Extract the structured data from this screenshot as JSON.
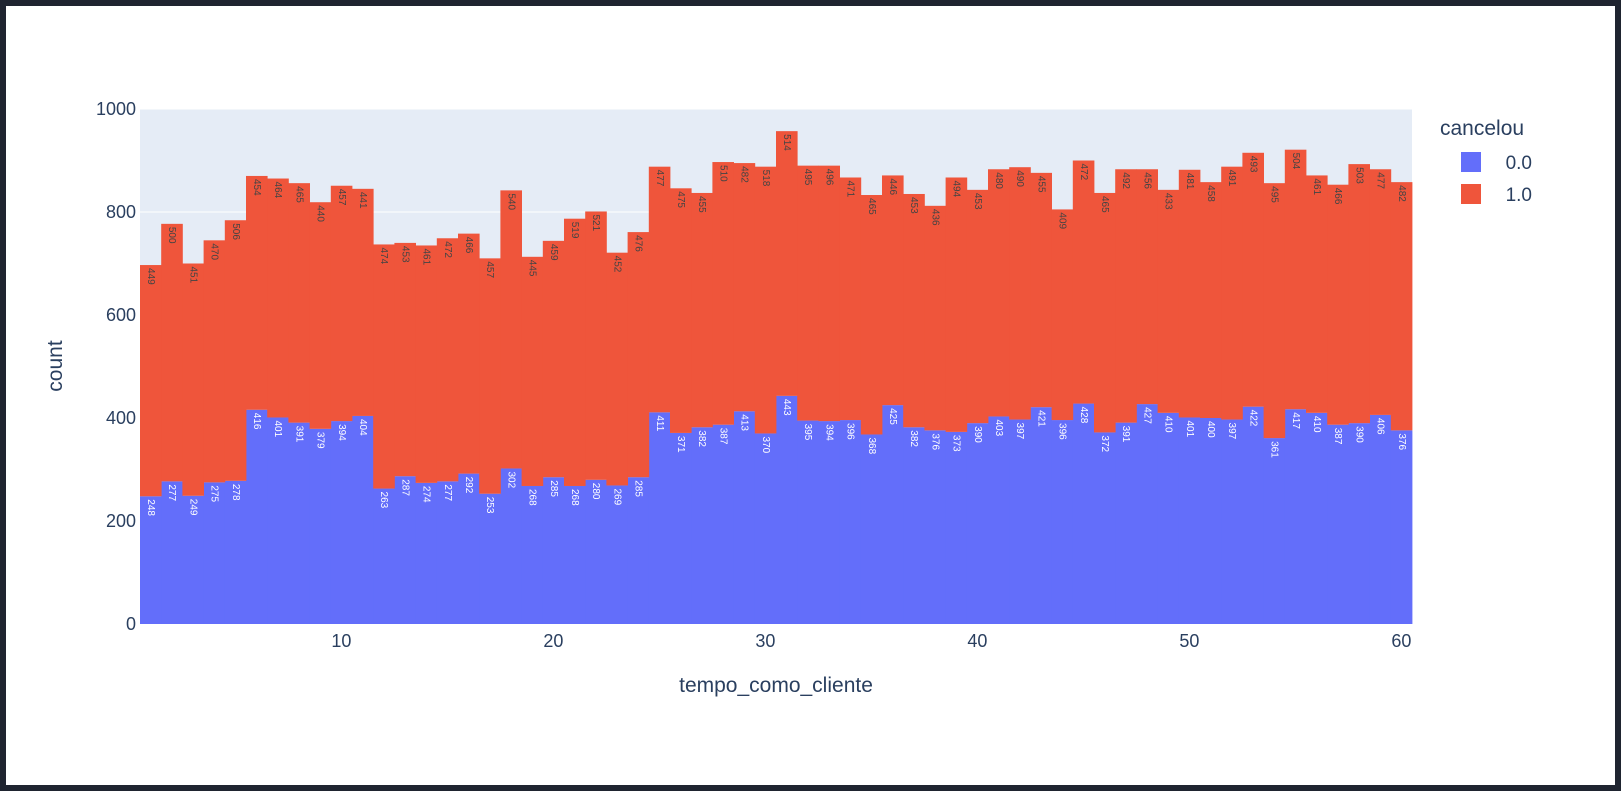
{
  "chart_data": {
    "type": "bar",
    "barmode": "stack",
    "xlabel": "tempo_como_cliente",
    "ylabel": "count",
    "legend_title": "cancelou",
    "legend_position": "top-right",
    "grid": true,
    "xlim": [
      0.5,
      60.5
    ],
    "ylim": [
      0,
      1000
    ],
    "x_ticks": [
      10,
      20,
      30,
      40,
      50,
      60
    ],
    "y_ticks": [
      0,
      200,
      400,
      600,
      800,
      1000
    ],
    "x": [
      1,
      2,
      3,
      4,
      5,
      6,
      7,
      8,
      9,
      10,
      11,
      12,
      13,
      14,
      15,
      16,
      17,
      18,
      19,
      20,
      21,
      22,
      23,
      24,
      25,
      26,
      27,
      28,
      29,
      30,
      31,
      32,
      33,
      34,
      35,
      36,
      37,
      38,
      39,
      40,
      41,
      42,
      43,
      44,
      45,
      46,
      47,
      48,
      49,
      50,
      51,
      52,
      53,
      54,
      55,
      56,
      57,
      58,
      59,
      60
    ],
    "series": [
      {
        "name": "0.0",
        "color": "#636efa",
        "values": [
          248,
          277,
          249,
          275,
          278,
          416,
          401,
          391,
          379,
          394,
          404,
          263,
          287,
          274,
          277,
          292,
          253,
          302,
          268,
          285,
          268,
          280,
          269,
          285,
          411,
          371,
          382,
          387,
          413,
          370,
          443,
          395,
          394,
          396,
          368,
          425,
          382,
          376,
          373,
          390,
          403,
          397,
          421,
          396,
          428,
          372,
          391,
          427,
          410,
          401,
          400,
          397,
          422,
          361,
          417,
          410,
          387,
          390,
          406,
          376
        ]
      },
      {
        "name": "1.0",
        "color": "#ef553b",
        "values": [
          449,
          500,
          451,
          470,
          506,
          454,
          464,
          465,
          440,
          457,
          441,
          474,
          453,
          461,
          472,
          466,
          457,
          540,
          445,
          459,
          519,
          521,
          452,
          476,
          477,
          475,
          455,
          510,
          482,
          518,
          514,
          495,
          496,
          471,
          465,
          446,
          453,
          436,
          494,
          453,
          480,
          490,
          455,
          409,
          472,
          465,
          492,
          456,
          433,
          481,
          458,
          491,
          493,
          495,
          504,
          461,
          466,
          503,
          477,
          482
        ]
      }
    ]
  }
}
